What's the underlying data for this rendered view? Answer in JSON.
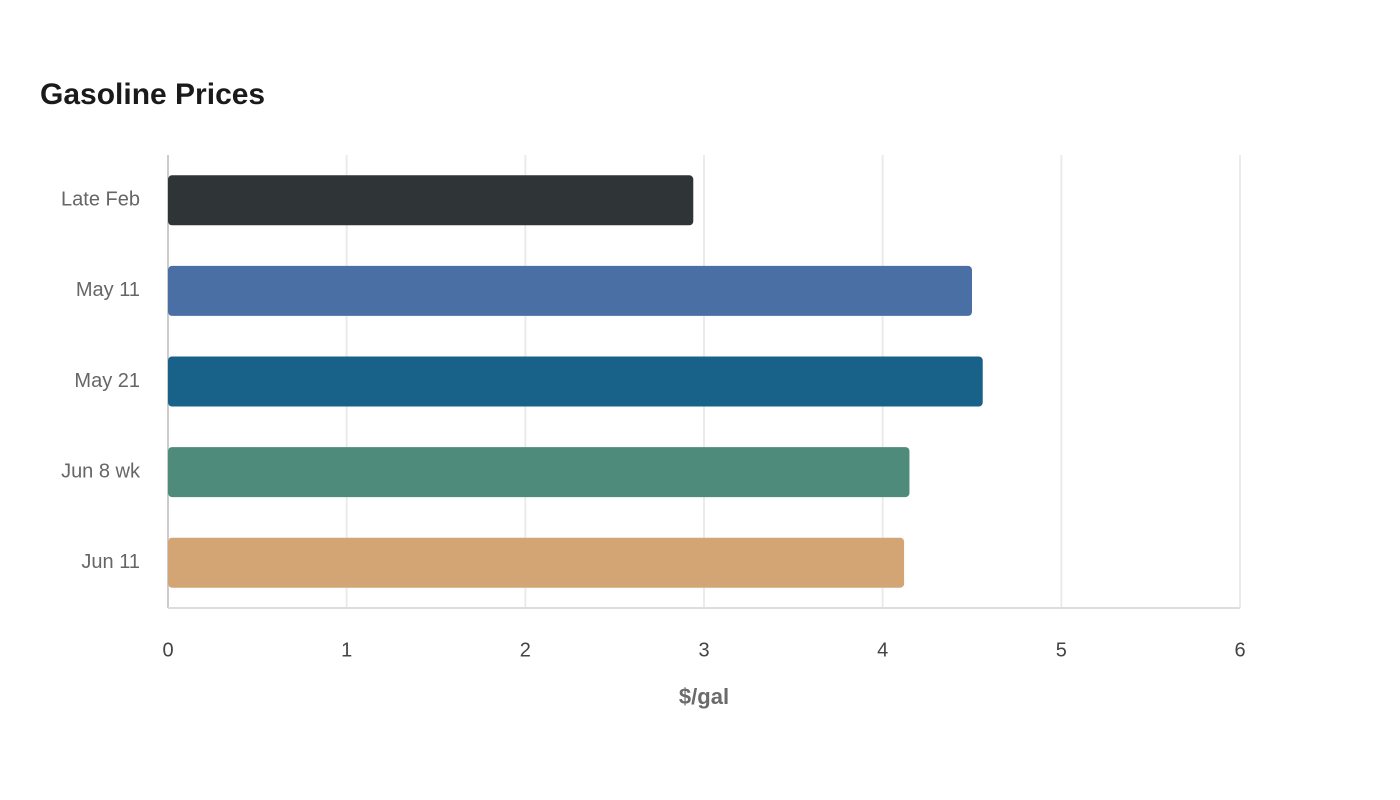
{
  "chart_data": {
    "type": "bar",
    "orientation": "horizontal",
    "title": "Gasoline Prices",
    "categories": [
      "Late Feb",
      "May 11",
      "May 21",
      "Jun 8 wk",
      "Jun 11"
    ],
    "values": [
      2.94,
      4.5,
      4.56,
      4.15,
      4.12
    ],
    "colors": [
      "#2f3437",
      "#4a6fa5",
      "#186189",
      "#4f8b7a",
      "#d4a574"
    ],
    "x_label": "$/gal",
    "xlim": [
      0,
      6
    ],
    "xticks": [
      0,
      1,
      2,
      3,
      4,
      5,
      6
    ],
    "grid": true
  }
}
